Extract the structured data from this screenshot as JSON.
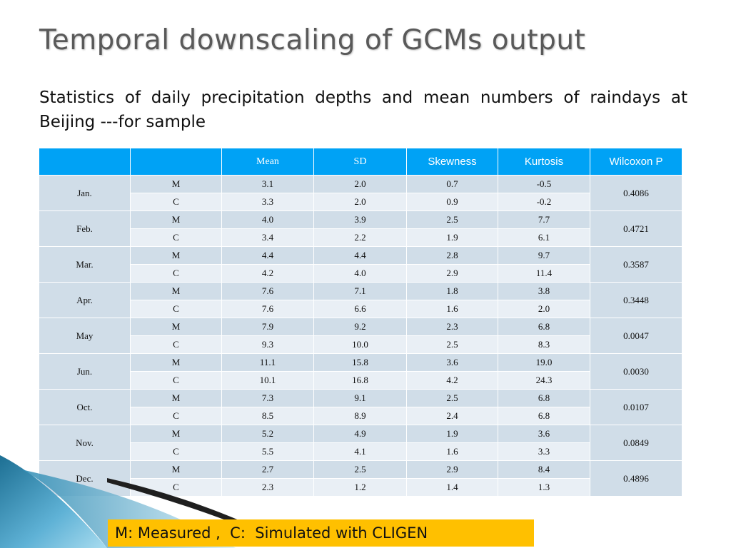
{
  "title": "Temporal downscaling of GCMs output",
  "subtitle": "Statistics of daily precipitation depths and mean numbers of raindays at Beijing ---for sample",
  "table": {
    "headers": [
      "",
      "",
      "Mean",
      "SD",
      "Skewness",
      "Kurtosis",
      "Wilcoxon P"
    ],
    "groups": [
      {
        "month": "Jan.",
        "p": "0.4086",
        "rows": [
          {
            "type": "M",
            "mean": "3.1",
            "sd": "2.0",
            "skew": "0.7",
            "kurt": "-0.5"
          },
          {
            "type": "C",
            "mean": "3.3",
            "sd": "2.0",
            "skew": "0.9",
            "kurt": "-0.2"
          }
        ]
      },
      {
        "month": "Feb.",
        "p": "0.4721",
        "rows": [
          {
            "type": "M",
            "mean": "4.0",
            "sd": "3.9",
            "skew": "2.5",
            "kurt": "7.7"
          },
          {
            "type": "C",
            "mean": "3.4",
            "sd": "2.2",
            "skew": "1.9",
            "kurt": "6.1"
          }
        ]
      },
      {
        "month": "Mar.",
        "p": "0.3587",
        "rows": [
          {
            "type": "M",
            "mean": "4.4",
            "sd": "4.4",
            "skew": "2.8",
            "kurt": "9.7"
          },
          {
            "type": "C",
            "mean": "4.2",
            "sd": "4.0",
            "skew": "2.9",
            "kurt": "11.4"
          }
        ]
      },
      {
        "month": "Apr.",
        "p": "0.3448",
        "rows": [
          {
            "type": "M",
            "mean": "7.6",
            "sd": "7.1",
            "skew": "1.8",
            "kurt": "3.8"
          },
          {
            "type": "C",
            "mean": "7.6",
            "sd": "6.6",
            "skew": "1.6",
            "kurt": "2.0"
          }
        ]
      },
      {
        "month": "May",
        "p": "0.0047",
        "rows": [
          {
            "type": "M",
            "mean": "7.9",
            "sd": "9.2",
            "skew": "2.3",
            "kurt": "6.8"
          },
          {
            "type": "C",
            "mean": "9.3",
            "sd": "10.0",
            "skew": "2.5",
            "kurt": "8.3"
          }
        ]
      },
      {
        "month": "Jun.",
        "p": "0.0030",
        "rows": [
          {
            "type": "M",
            "mean": "11.1",
            "sd": "15.8",
            "skew": "3.6",
            "kurt": "19.0"
          },
          {
            "type": "C",
            "mean": "10.1",
            "sd": "16.8",
            "skew": "4.2",
            "kurt": "24.3"
          }
        ]
      },
      {
        "month": "Oct.",
        "p": "0.0107",
        "rows": [
          {
            "type": "M",
            "mean": "7.3",
            "sd": "9.1",
            "skew": "2.5",
            "kurt": "6.8"
          },
          {
            "type": "C",
            "mean": "8.5",
            "sd": "8.9",
            "skew": "2.4",
            "kurt": "6.8"
          }
        ]
      },
      {
        "month": "Nov.",
        "p": "0.0849",
        "rows": [
          {
            "type": "M",
            "mean": "5.2",
            "sd": "4.9",
            "skew": "1.9",
            "kurt": "3.6"
          },
          {
            "type": "C",
            "mean": "5.5",
            "sd": "4.1",
            "skew": "1.6",
            "kurt": "3.3"
          }
        ]
      },
      {
        "month": "Dec.",
        "p": "0.4896",
        "rows": [
          {
            "type": "M",
            "mean": "2.7",
            "sd": "2.5",
            "skew": "2.9",
            "kurt": "8.4"
          },
          {
            "type": "C",
            "mean": "2.3",
            "sd": "1.2",
            "skew": "1.4",
            "kurt": "1.3"
          }
        ]
      }
    ]
  },
  "legend": "M: Measured ,  C:  Simulated with CLIGEN",
  "colors": {
    "header_bg": "#00a2f5",
    "row_dark": "#d0dde8",
    "row_light": "#e9eff5",
    "legend_bg": "#ffc000",
    "title": "#595959"
  }
}
